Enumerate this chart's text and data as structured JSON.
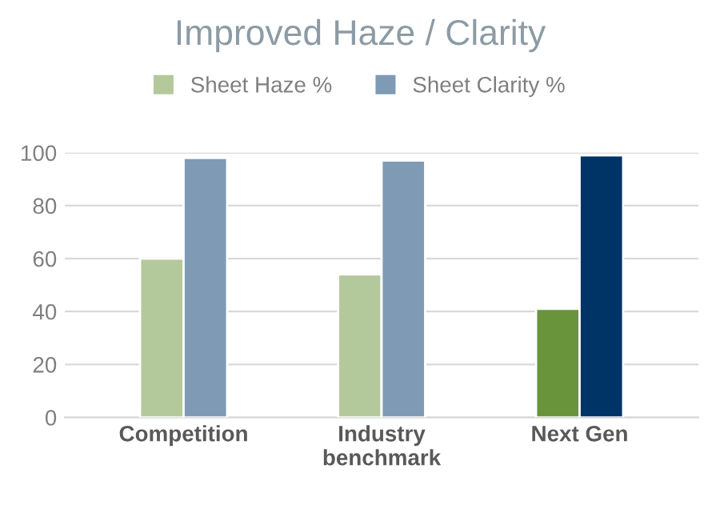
{
  "chart_data": {
    "type": "bar",
    "title": "Improved Haze / Clarity",
    "categories": [
      "Competition",
      "Industry\nbenchmark",
      "Next Gen"
    ],
    "series": [
      {
        "name": "Sheet Haze %",
        "color": "#b4c99b",
        "colors": [
          "#b4c99b",
          "#b4c99b",
          "#6a943c"
        ],
        "values": [
          60,
          54,
          41
        ]
      },
      {
        "name": "Sheet Clarity %",
        "color": "#7f9ab5",
        "colors": [
          "#7f9ab5",
          "#7f9ab5",
          "#003366"
        ],
        "values": [
          98,
          97,
          99
        ]
      }
    ],
    "ylim": [
      0,
      100
    ],
    "yticks": [
      0,
      20,
      40,
      60,
      80,
      100
    ],
    "grid": "y",
    "legend": "top"
  }
}
